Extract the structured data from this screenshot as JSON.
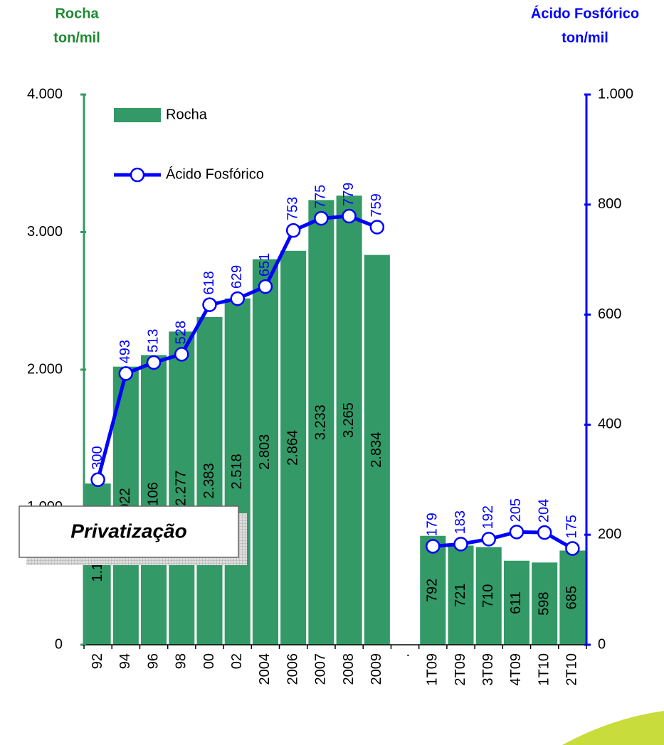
{
  "chart_data": {
    "type": "bar_line",
    "ylabel": [
      "Rocha",
      "ton/mil"
    ],
    "y2label": [
      "Ácido Fosfórico",
      "ton/mil"
    ],
    "annotation": "Privatização",
    "categories": [
      "92",
      "94",
      "96",
      "98",
      "00",
      "02",
      "2004",
      "2006",
      "2007",
      "2008",
      "2009",
      ".",
      "1T09",
      "2T09",
      "3T09",
      "4T09",
      "1T10",
      "2T10"
    ],
    "series": [
      {
        "name": "Rocha",
        "type": "bar",
        "color": "#339966",
        "values": [
          1172,
          2022,
          2106,
          2277,
          2383,
          2518,
          2803,
          2864,
          3233,
          3265,
          2834,
          null,
          792,
          721,
          710,
          611,
          598,
          685
        ],
        "value_labels": [
          "1.172",
          "2.022",
          "2.106",
          "2.277",
          "2.383",
          "2.518",
          "2.803",
          "2.864",
          "3.233",
          "3.265",
          "2.834",
          null,
          "792",
          "721",
          "710",
          "611",
          "598",
          "685"
        ]
      },
      {
        "name": "Ácido Fosfórico",
        "type": "line",
        "axis": "y2",
        "color": "#0000ff",
        "values": [
          300,
          493,
          513,
          528,
          618,
          629,
          651,
          753,
          775,
          779,
          759,
          null,
          179,
          183,
          192,
          205,
          204,
          175
        ]
      }
    ],
    "ylim": [
      0,
      4000
    ],
    "yticks": [
      0,
      {
        "value": 1000,
        "label": "1.000"
      },
      {
        "value": 2000,
        "label": "2.000"
      },
      {
        "value": 3000,
        "label": "3.000"
      },
      {
        "value": 4000,
        "label": "4.000"
      }
    ],
    "y2lim": [
      0,
      1000
    ],
    "y2ticks": [
      0,
      200,
      400,
      600,
      800,
      {
        "value": 1000,
        "label": "1.000"
      }
    ],
    "left_axis_color": "#339966",
    "right_axis_color": "#0000ff"
  }
}
